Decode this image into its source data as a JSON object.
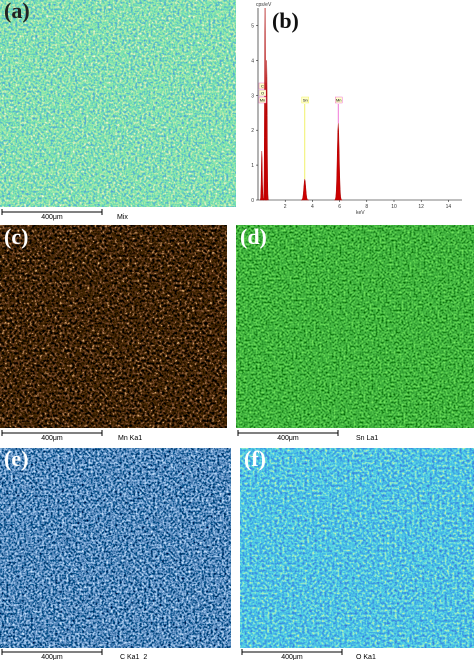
{
  "panels": [
    {
      "label": "(a)",
      "scale": "400μm",
      "element": "Mix"
    },
    {
      "label": "(c)",
      "scale": "400μm",
      "element": "Mn Ka1"
    },
    {
      "label": "(d)",
      "scale": "400μm",
      "element": "Sn La1"
    },
    {
      "label": "(e)",
      "scale": "400μm",
      "element": "C Ka1_2"
    },
    {
      "label": "(f)",
      "scale": "400μm",
      "element": "O Ka1"
    }
  ],
  "chart_data": {
    "type": "line",
    "panel_label": "(b)",
    "ylabel": "cps/eV",
    "xlabel": "keV",
    "xlim": [
      0,
      15
    ],
    "ylim": [
      0,
      5.5
    ],
    "xticks": [
      2,
      4,
      6,
      8,
      10,
      12,
      14
    ],
    "yticks": [
      0,
      1,
      2,
      3,
      4,
      5
    ],
    "peaks": [
      {
        "label": "C",
        "x": 0.28,
        "y": 1.4
      },
      {
        "label": "O",
        "x": 0.52,
        "y": 5.5
      },
      {
        "label": "Mn",
        "x": 0.64,
        "y": 4.0
      },
      {
        "label": "Sn",
        "x": 3.44,
        "y": 0.6
      },
      {
        "label": "Mn",
        "x": 5.9,
        "y": 2.2
      }
    ]
  }
}
